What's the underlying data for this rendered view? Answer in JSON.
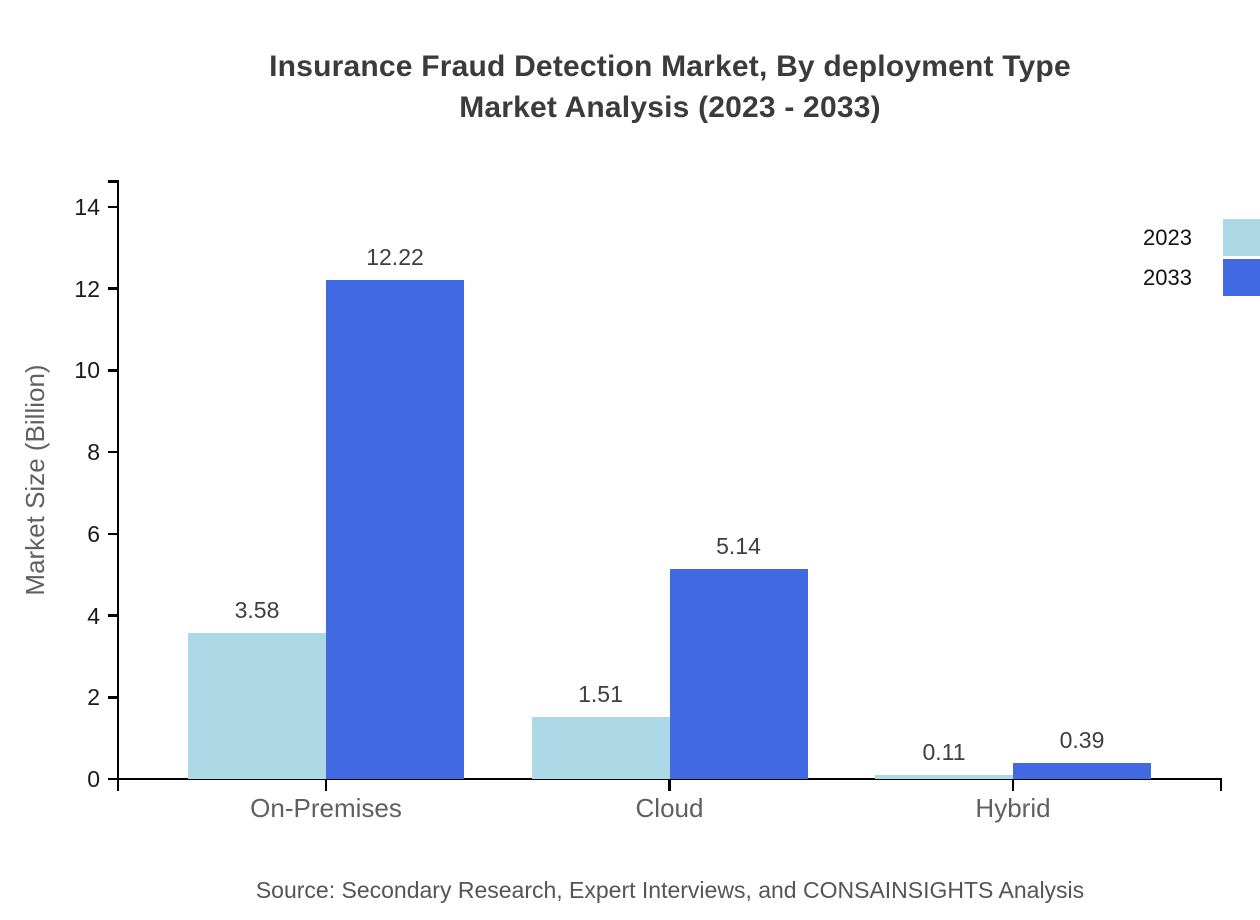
{
  "title": {
    "line1": "Insurance Fraud Detection Market, By deployment Type",
    "line2": "Market Analysis (2023 - 2033)"
  },
  "source": "Source: Secondary Research, Expert Interviews, and CONSAINSIGHTS Analysis",
  "legend": {
    "items": [
      {
        "label": "2023",
        "color": "#ADD8E6"
      },
      {
        "label": "2033",
        "color": "#4169E1"
      }
    ],
    "position": "top-right"
  },
  "chart_data": {
    "type": "bar",
    "title": "Insurance Fraud Detection Market, By deployment Type Market Analysis (2023 - 2033)",
    "categories": [
      "On-Premises",
      "Cloud",
      "Hybrid"
    ],
    "series": [
      {
        "name": "2023",
        "color": "#ADD8E6",
        "values": [
          3.58,
          1.51,
          0.11
        ]
      },
      {
        "name": "2033",
        "color": "#4169E1",
        "values": [
          12.22,
          5.14,
          0.39
        ]
      }
    ],
    "xlabel": "",
    "ylabel": "Market Size (Billion)",
    "ylim": [
      0,
      14
    ],
    "yticks": [
      0,
      2,
      4,
      6,
      8,
      10,
      12,
      14
    ],
    "grid": false,
    "value_labels": true,
    "value_label_format": "2dp",
    "legend_position": "top-right"
  }
}
